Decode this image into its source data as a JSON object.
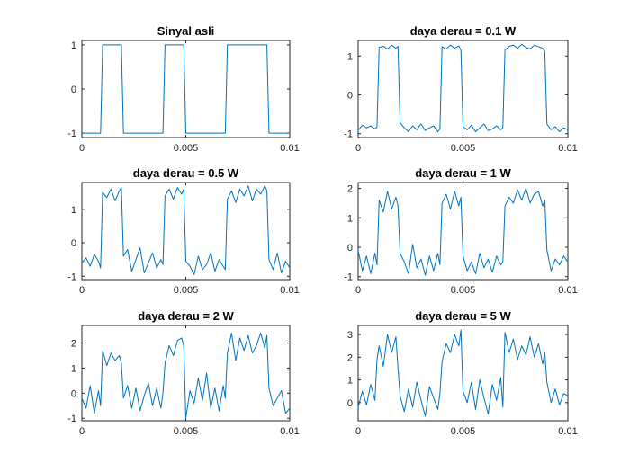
{
  "chart_data": [
    {
      "type": "line",
      "title": "Sinyal asli",
      "xlabel": "",
      "ylabel": "",
      "xlim": [
        0,
        0.01
      ],
      "ylim": [
        -1.1,
        1.1
      ],
      "xticks": [
        0,
        0.005,
        0.01
      ],
      "xtick_labels": [
        "0",
        "0.005",
        "0.01"
      ],
      "yticks": [
        -1,
        0,
        1
      ],
      "ytick_labels": [
        "-1",
        "0",
        "1"
      ],
      "grid": false,
      "color": "#0072BD",
      "series": [
        {
          "x": [
            0,
            0.0009,
            0.001,
            0.0019,
            0.002,
            0.0039,
            0.004,
            0.0049,
            0.005,
            0.0069,
            0.007,
            0.0089,
            0.009,
            0.01
          ],
          "y": [
            -1,
            -1,
            1,
            1,
            -1,
            -1,
            1,
            1,
            -1,
            -1,
            1,
            1,
            -1,
            -1
          ]
        }
      ]
    },
    {
      "type": "line",
      "title": "daya derau = 0.1 W",
      "xlabel": "",
      "ylabel": "",
      "xlim": [
        0,
        0.01
      ],
      "ylim": [
        -1.1,
        1.4
      ],
      "xticks": [
        0,
        0.005,
        0.01
      ],
      "xtick_labels": [
        "0",
        "0.005",
        "0.01"
      ],
      "yticks": [
        -1,
        0,
        1
      ],
      "ytick_labels": [
        "-1",
        "0",
        "1"
      ],
      "grid": false,
      "color": "#0072BD",
      "series": [
        {
          "x": [
            0,
            0.0002,
            0.0004,
            0.0006,
            0.0008,
            0.0009,
            0.001,
            0.0012,
            0.0014,
            0.0016,
            0.0018,
            0.0019,
            0.002,
            0.0022,
            0.0024,
            0.0026,
            0.0028,
            0.003,
            0.0032,
            0.0034,
            0.0036,
            0.0038,
            0.0039,
            0.004,
            0.0042,
            0.0044,
            0.0046,
            0.0048,
            0.0049,
            0.005,
            0.0052,
            0.0054,
            0.0056,
            0.0058,
            0.006,
            0.0062,
            0.0064,
            0.0066,
            0.0068,
            0.0069,
            0.007,
            0.0072,
            0.0074,
            0.0076,
            0.0078,
            0.008,
            0.0082,
            0.0084,
            0.0086,
            0.0088,
            0.0089,
            0.009,
            0.0092,
            0.0094,
            0.0096,
            0.0098,
            0.01
          ],
          "y": [
            -0.92,
            -0.78,
            -0.85,
            -0.8,
            -0.88,
            -0.82,
            1.22,
            1.25,
            1.18,
            1.28,
            1.2,
            1.25,
            -0.72,
            -0.85,
            -0.95,
            -0.8,
            -0.9,
            -0.75,
            -0.92,
            -0.85,
            -0.8,
            -0.95,
            -0.88,
            1.24,
            1.18,
            1.28,
            1.2,
            1.26,
            1.15,
            -0.82,
            -0.9,
            -0.78,
            -0.95,
            -0.85,
            -0.75,
            -0.92,
            -0.88,
            -0.8,
            -0.9,
            -0.85,
            1.15,
            1.25,
            1.28,
            1.2,
            1.3,
            1.22,
            1.18,
            1.28,
            1.24,
            1.2,
            1.12,
            -0.75,
            -0.9,
            -0.82,
            -0.95,
            -0.85,
            -0.9
          ]
        }
      ]
    },
    {
      "type": "line",
      "title": "daya derau = 0.5 W",
      "xlabel": "",
      "ylabel": "",
      "xlim": [
        0,
        0.01
      ],
      "ylim": [
        -1.1,
        1.8
      ],
      "xticks": [
        0,
        0.005,
        0.01
      ],
      "xtick_labels": [
        "0",
        "0.005",
        "0.01"
      ],
      "yticks": [
        -1,
        0,
        1
      ],
      "ytick_labels": [
        "-1",
        "0",
        "1"
      ],
      "grid": false,
      "color": "#0072BD",
      "series": [
        {
          "x": [
            0,
            0.0002,
            0.0004,
            0.0006,
            0.0008,
            0.0009,
            0.001,
            0.0012,
            0.0014,
            0.0016,
            0.0018,
            0.0019,
            0.002,
            0.0022,
            0.0024,
            0.0026,
            0.0028,
            0.003,
            0.0032,
            0.0034,
            0.0036,
            0.0038,
            0.0039,
            0.004,
            0.0042,
            0.0044,
            0.0046,
            0.0048,
            0.0049,
            0.005,
            0.0052,
            0.0054,
            0.0056,
            0.0058,
            0.006,
            0.0062,
            0.0064,
            0.0066,
            0.0068,
            0.0069,
            0.007,
            0.0072,
            0.0074,
            0.0076,
            0.0078,
            0.008,
            0.0082,
            0.0084,
            0.0086,
            0.0088,
            0.0089,
            0.009,
            0.0092,
            0.0094,
            0.0096,
            0.0098,
            0.01
          ],
          "y": [
            -0.6,
            -0.45,
            -0.7,
            -0.35,
            -0.55,
            -0.75,
            1.5,
            1.35,
            1.6,
            1.25,
            1.55,
            1.65,
            -0.4,
            -0.2,
            -0.85,
            -0.5,
            -0.15,
            -0.9,
            -0.6,
            -0.3,
            -0.75,
            -0.5,
            -0.65,
            1.4,
            1.6,
            1.3,
            1.65,
            1.45,
            1.6,
            -0.55,
            -0.7,
            -0.95,
            -0.4,
            -0.8,
            -0.65,
            -0.3,
            -0.85,
            -0.5,
            -0.7,
            -0.8,
            1.3,
            1.55,
            1.2,
            1.6,
            1.4,
            1.7,
            1.25,
            1.6,
            1.45,
            1.7,
            1.55,
            -0.5,
            -0.8,
            -0.3,
            -0.9,
            -0.55,
            -0.75
          ]
        }
      ]
    },
    {
      "type": "line",
      "title": "daya derau = 1 W",
      "xlabel": "",
      "ylabel": "",
      "xlim": [
        0,
        0.01
      ],
      "ylim": [
        -1.1,
        2.2
      ],
      "xticks": [
        0,
        0.005,
        0.01
      ],
      "xtick_labels": [
        "0",
        "0.005",
        "0.01"
      ],
      "yticks": [
        -1,
        0,
        1,
        2
      ],
      "ytick_labels": [
        "-1",
        "0",
        "1",
        "2"
      ],
      "grid": false,
      "color": "#0072BD",
      "series": [
        {
          "x": [
            0,
            0.0002,
            0.0004,
            0.0006,
            0.0008,
            0.0009,
            0.001,
            0.0012,
            0.0014,
            0.0016,
            0.0018,
            0.0019,
            0.002,
            0.0022,
            0.0024,
            0.0026,
            0.0028,
            0.003,
            0.0032,
            0.0034,
            0.0036,
            0.0038,
            0.0039,
            0.004,
            0.0042,
            0.0044,
            0.0046,
            0.0048,
            0.0049,
            0.005,
            0.0052,
            0.0054,
            0.0056,
            0.0058,
            0.006,
            0.0062,
            0.0064,
            0.0066,
            0.0068,
            0.0069,
            0.007,
            0.0072,
            0.0074,
            0.0076,
            0.0078,
            0.008,
            0.0082,
            0.0084,
            0.0086,
            0.0088,
            0.0089,
            0.009,
            0.0092,
            0.0094,
            0.0096,
            0.0098,
            0.01
          ],
          "y": [
            -0.1,
            -0.8,
            -0.3,
            -0.9,
            -0.2,
            -0.6,
            1.6,
            1.2,
            1.9,
            1.3,
            1.7,
            1.4,
            -0.2,
            -0.5,
            -0.9,
            0.1,
            -0.7,
            -0.4,
            -0.95,
            -0.3,
            -0.8,
            -0.2,
            -0.6,
            1.5,
            1.8,
            1.3,
            1.9,
            1.4,
            1.7,
            -0.3,
            -0.8,
            -0.5,
            -0.9,
            -0.2,
            -0.7,
            -0.4,
            -0.85,
            -0.3,
            -0.6,
            -0.5,
            1.4,
            1.7,
            1.5,
            1.95,
            1.6,
            2.0,
            1.5,
            1.8,
            1.9,
            1.4,
            1.6,
            -0.1,
            -0.8,
            -0.4,
            -0.6,
            -0.3,
            -0.5
          ]
        }
      ]
    },
    {
      "type": "line",
      "title": "daya derau = 2 W",
      "xlabel": "",
      "ylabel": "",
      "xlim": [
        0,
        0.01
      ],
      "ylim": [
        -1.1,
        2.7
      ],
      "xticks": [
        0,
        0.005,
        0.01
      ],
      "xtick_labels": [
        "0",
        "0.005",
        "0.01"
      ],
      "yticks": [
        -1,
        0,
        1,
        2
      ],
      "ytick_labels": [
        "-1",
        "0",
        "1",
        "2"
      ],
      "grid": false,
      "color": "#0072BD",
      "series": [
        {
          "x": [
            0,
            0.0002,
            0.0004,
            0.0006,
            0.0008,
            0.0009,
            0.001,
            0.0012,
            0.0014,
            0.0016,
            0.0018,
            0.0019,
            0.002,
            0.0022,
            0.0024,
            0.0026,
            0.0028,
            0.003,
            0.0032,
            0.0034,
            0.0036,
            0.0038,
            0.0039,
            0.004,
            0.0042,
            0.0044,
            0.0046,
            0.0048,
            0.0049,
            0.005,
            0.0052,
            0.0054,
            0.0056,
            0.0058,
            0.006,
            0.0062,
            0.0064,
            0.0066,
            0.0068,
            0.0069,
            0.007,
            0.0072,
            0.0074,
            0.0076,
            0.0078,
            0.008,
            0.0082,
            0.0084,
            0.0086,
            0.0088,
            0.0089,
            0.009,
            0.0092,
            0.0094,
            0.0096,
            0.0098,
            0.01
          ],
          "y": [
            -0.2,
            -0.6,
            0.3,
            -0.8,
            0.1,
            -0.5,
            1.7,
            1.1,
            1.6,
            1.3,
            1.5,
            1.2,
            -0.2,
            0.3,
            -0.6,
            0.2,
            -0.7,
            -0.1,
            0.4,
            -0.5,
            0.2,
            -0.6,
            0.0,
            1.2,
            1.9,
            1.5,
            2.1,
            2.2,
            1.9,
            -1.0,
            0.1,
            -0.4,
            0.6,
            -0.3,
            0.8,
            -0.6,
            0.2,
            -0.7,
            0.3,
            -0.2,
            1.6,
            2.4,
            1.3,
            2.2,
            1.7,
            2.3,
            1.6,
            1.9,
            2.4,
            1.8,
            2.3,
            0.2,
            -0.5,
            -0.2,
            0.1,
            -0.8,
            -0.6
          ]
        }
      ]
    },
    {
      "type": "line",
      "title": "daya derau = 5 W",
      "xlabel": "",
      "ylabel": "",
      "xlim": [
        0,
        0.01
      ],
      "ylim": [
        -0.8,
        3.4
      ],
      "xticks": [
        0,
        0.005,
        0.01
      ],
      "xtick_labels": [
        "0",
        "0.005",
        "0.01"
      ],
      "yticks": [
        0,
        1,
        2,
        3
      ],
      "ytick_labels": [
        "0",
        "1",
        "2",
        "3"
      ],
      "grid": false,
      "color": "#0072BD",
      "series": [
        {
          "x": [
            0,
            0.0002,
            0.0004,
            0.0006,
            0.0008,
            0.0009,
            0.001,
            0.0012,
            0.0014,
            0.0016,
            0.0018,
            0.0019,
            0.002,
            0.0022,
            0.0024,
            0.0026,
            0.0028,
            0.003,
            0.0032,
            0.0034,
            0.0036,
            0.0038,
            0.0039,
            0.004,
            0.0042,
            0.0044,
            0.0046,
            0.0048,
            0.0049,
            0.005,
            0.0052,
            0.0054,
            0.0056,
            0.0058,
            0.006,
            0.0062,
            0.0064,
            0.0066,
            0.0068,
            0.0069,
            0.007,
            0.0072,
            0.0074,
            0.0076,
            0.0078,
            0.008,
            0.0082,
            0.0084,
            0.0086,
            0.0088,
            0.0089,
            0.009,
            0.0092,
            0.0094,
            0.0096,
            0.0098,
            0.01
          ],
          "y": [
            -0.2,
            0.5,
            -0.1,
            0.8,
            0.1,
            1.9,
            2.5,
            1.6,
            3.0,
            2.2,
            2.9,
            1.5,
            0.3,
            -0.4,
            0.6,
            -0.2,
            0.9,
            0.1,
            -0.6,
            0.7,
            0.2,
            -0.3,
            0.4,
            1.8,
            2.6,
            2.2,
            3.0,
            2.5,
            3.2,
            0.5,
            0.0,
            0.9,
            -0.3,
            1.0,
            0.2,
            -0.5,
            0.8,
            0.1,
            1.1,
            -0.2,
            3.1,
            2.2,
            2.8,
            1.9,
            2.5,
            2.1,
            2.9,
            2.0,
            2.6,
            1.7,
            2.2,
            0.9,
            0.0,
            0.6,
            -0.1,
            0.4,
            0.3
          ]
        }
      ]
    }
  ]
}
